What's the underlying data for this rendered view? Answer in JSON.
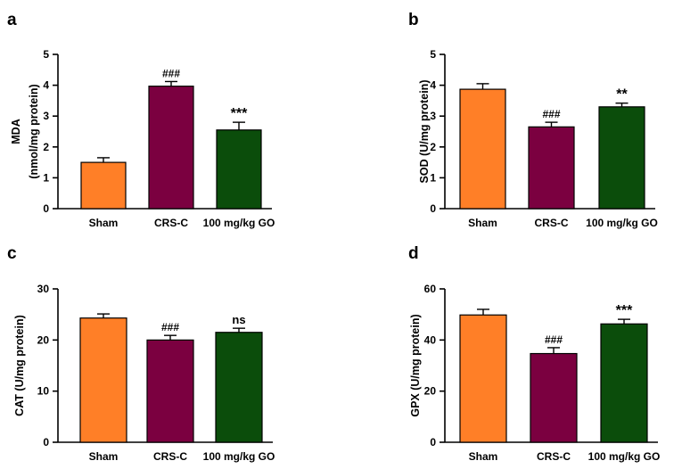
{
  "chart_data": [
    {
      "type": "bar",
      "panel": "a",
      "ylabel": "MDA",
      "ylabel_unit": "(nmol/mg protein)",
      "ylim": [
        0,
        5
      ],
      "yticks": [
        "0",
        "1",
        "2",
        "3",
        "4",
        "5"
      ],
      "ytick_values": [
        0,
        1,
        2,
        3,
        4,
        5
      ],
      "categories": [
        "Sham",
        "CRS-C",
        "100 mg/kg GO"
      ],
      "values": [
        1.5,
        3.97,
        2.55
      ],
      "errors": [
        0.15,
        0.15,
        0.25
      ],
      "significance": [
        "",
        "###",
        "***"
      ],
      "colors": [
        "#ff7f27",
        "#7b0040",
        "#0b4d0b"
      ]
    },
    {
      "type": "bar",
      "panel": "b",
      "ylabel": "SOD (U/mg protein)",
      "ylim": [
        0,
        5
      ],
      "yticks": [
        "0",
        "1",
        "2",
        "3",
        "4",
        "5"
      ],
      "ytick_values": [
        0,
        1,
        2,
        3,
        4,
        5
      ],
      "categories": [
        "Sham",
        "CRS-C",
        "100 mg/kg GO"
      ],
      "values": [
        3.87,
        2.65,
        3.3
      ],
      "errors": [
        0.18,
        0.15,
        0.12
      ],
      "significance": [
        "",
        "###",
        "**"
      ],
      "colors": [
        "#ff7f27",
        "#7b0040",
        "#0b4d0b"
      ]
    },
    {
      "type": "bar",
      "panel": "c",
      "ylabel": "CAT (U/mg protein)",
      "ylim": [
        0,
        30
      ],
      "yticks": [
        "0",
        "10",
        "20",
        "30"
      ],
      "ytick_values": [
        0,
        10,
        20,
        30
      ],
      "categories": [
        "Sham",
        "CRS-C",
        "100 mg/kg GO"
      ],
      "values": [
        24.3,
        20.0,
        21.5
      ],
      "errors": [
        0.8,
        0.9,
        0.8
      ],
      "significance": [
        "",
        "###",
        "ns"
      ],
      "colors": [
        "#ff7f27",
        "#7b0040",
        "#0b4d0b"
      ]
    },
    {
      "type": "bar",
      "panel": "d",
      "ylabel": "GPX (U/mg protein)",
      "ylim": [
        0,
        60
      ],
      "yticks": [
        "0",
        "20",
        "40",
        "60"
      ],
      "ytick_values": [
        0,
        20,
        40,
        60
      ],
      "categories": [
        "Sham",
        "CRS-C",
        "100 mg/kg GO"
      ],
      "values": [
        49.8,
        34.7,
        46.3
      ],
      "errors": [
        2.2,
        2.3,
        1.8
      ],
      "significance": [
        "",
        "###",
        "***"
      ],
      "colors": [
        "#ff7f27",
        "#7b0040",
        "#0b4d0b"
      ]
    }
  ]
}
